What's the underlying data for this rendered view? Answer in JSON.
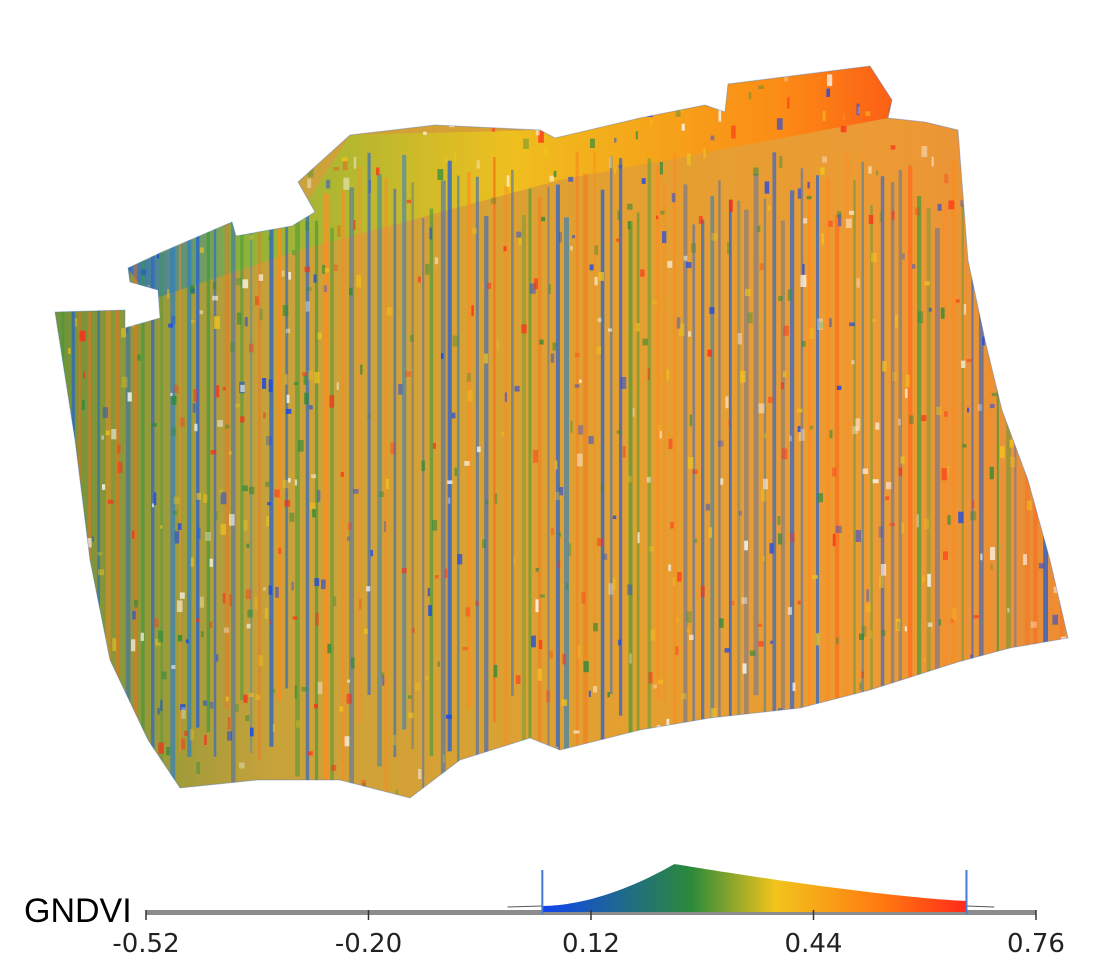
{
  "legend": {
    "index_name": "GNDVI",
    "ticks": [
      "-0.52",
      "-0.20",
      "0.12",
      "0.44",
      "0.76"
    ],
    "tick_values": [
      -0.52,
      -0.2,
      0.12,
      0.44,
      0.76
    ],
    "range_min": -0.52,
    "range_max": 0.76,
    "stretch_min": 0.05,
    "stretch_max": 0.66,
    "histogram_peak": 0.24
  },
  "colors": {
    "low": "#1144ee",
    "mid_low": "#2a8a3a",
    "mid": "#f2c41c",
    "mid_high": "#ff7a10",
    "high": "#ff2a1a",
    "axis": "#8c8c8c"
  }
}
